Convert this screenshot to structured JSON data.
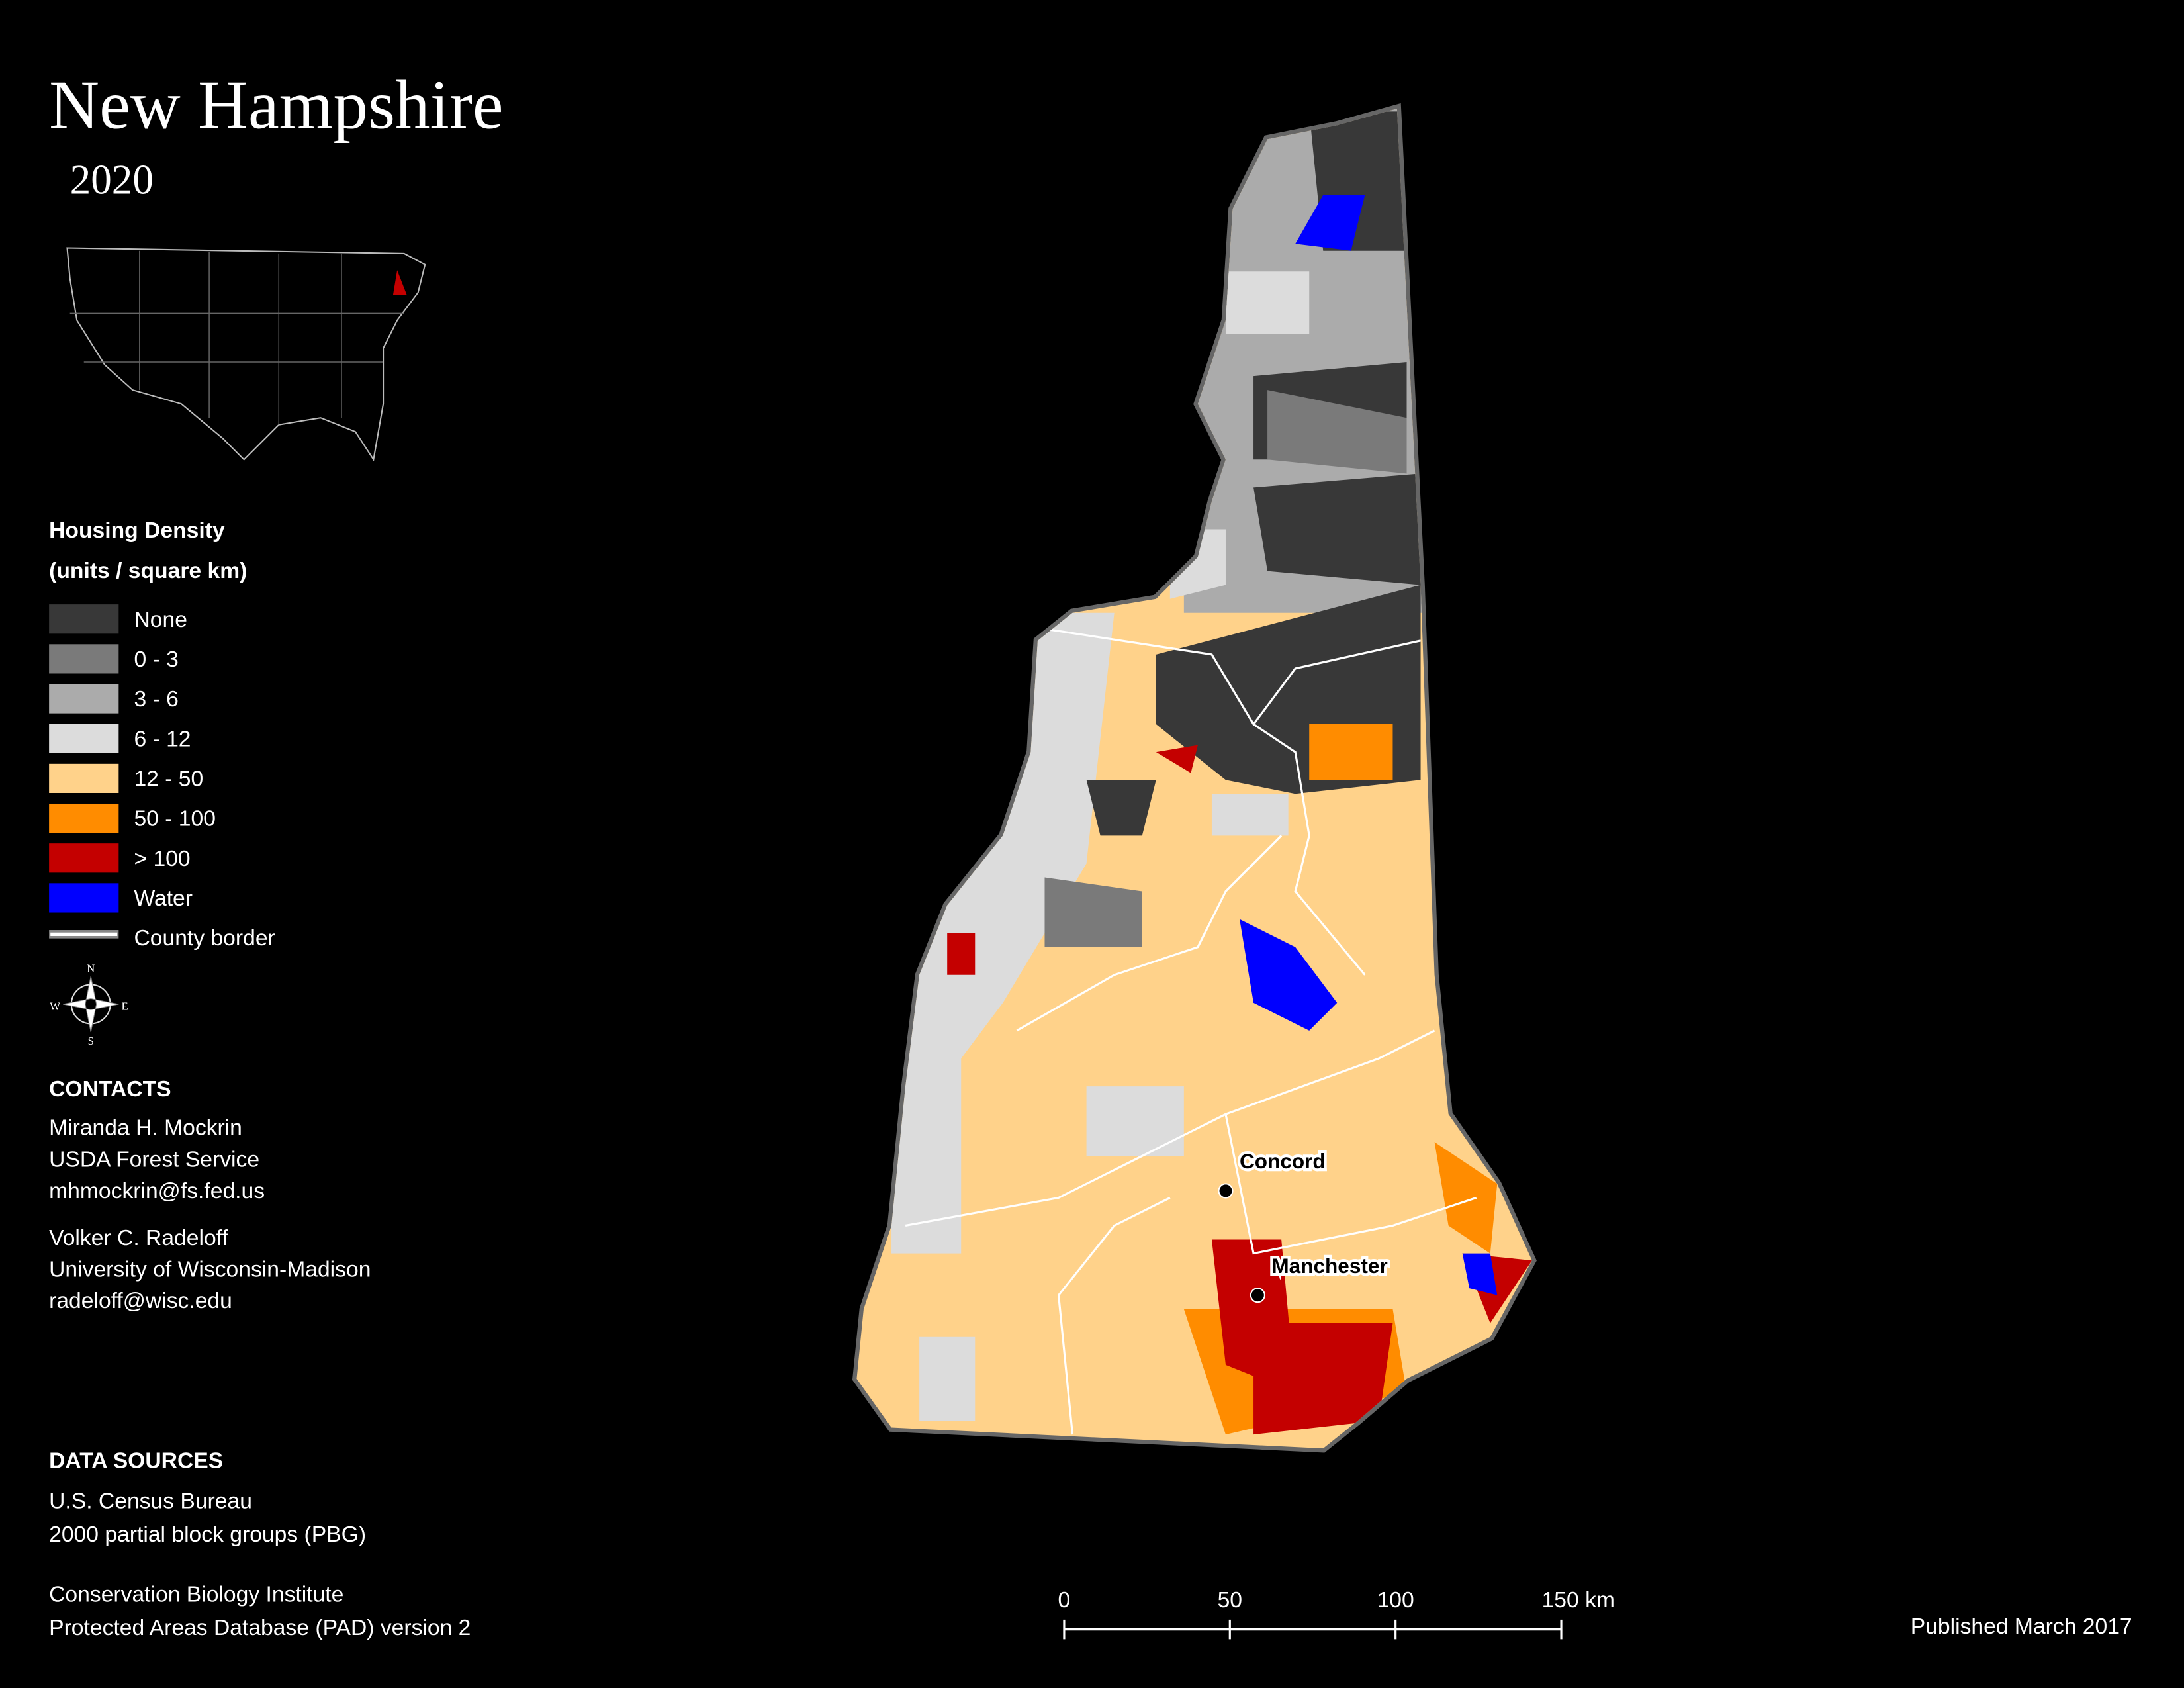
{
  "header": {
    "title": "New Hampshire",
    "subtitle": "2020"
  },
  "legend": {
    "title_lines": [
      "Housing Density",
      "(units / square km)"
    ],
    "items": [
      {
        "label": "None",
        "color": "#383838"
      },
      {
        "label": "0 - 3",
        "color": "#7a7a7a"
      },
      {
        "label": "3 - 6",
        "color": "#ababab"
      },
      {
        "label": "6 - 12",
        "color": "#dcdcdc"
      },
      {
        "label": "12 - 50",
        "color": "#ffd28a"
      },
      {
        "label": "50 - 100",
        "color": "#ff8c00"
      },
      {
        "label": "> 100",
        "color": "#c40000"
      },
      {
        "label": "Water",
        "color": "#0000ff"
      },
      {
        "label": "County border",
        "color": "#ffffff"
      }
    ]
  },
  "compass": {
    "n": "N",
    "s": "S",
    "e": "E",
    "w": "W"
  },
  "contacts": {
    "heading": "CONTACTS",
    "people": [
      [
        "Miranda H. Mockrin",
        "USDA Forest Service",
        "mhmockrin@fs.fed.us"
      ],
      [
        "Volker C. Radeloff",
        "University of Wisconsin-Madison",
        "radeloff@wisc.edu"
      ]
    ]
  },
  "data_sources": {
    "heading": "DATA SOURCES",
    "sources": [
      [
        "U.S. Census Bureau",
        "2000 partial block groups (PBG)"
      ],
      [
        "Conservation Biology Institute",
        "Protected Areas Database (PAD) version 2"
      ]
    ]
  },
  "map": {
    "cities": [
      "Concord",
      "Manchester"
    ]
  },
  "scale_bar": {
    "labels": [
      "0",
      "50",
      "100",
      "150 km"
    ]
  },
  "footer": {
    "published": "Published March 2017"
  }
}
